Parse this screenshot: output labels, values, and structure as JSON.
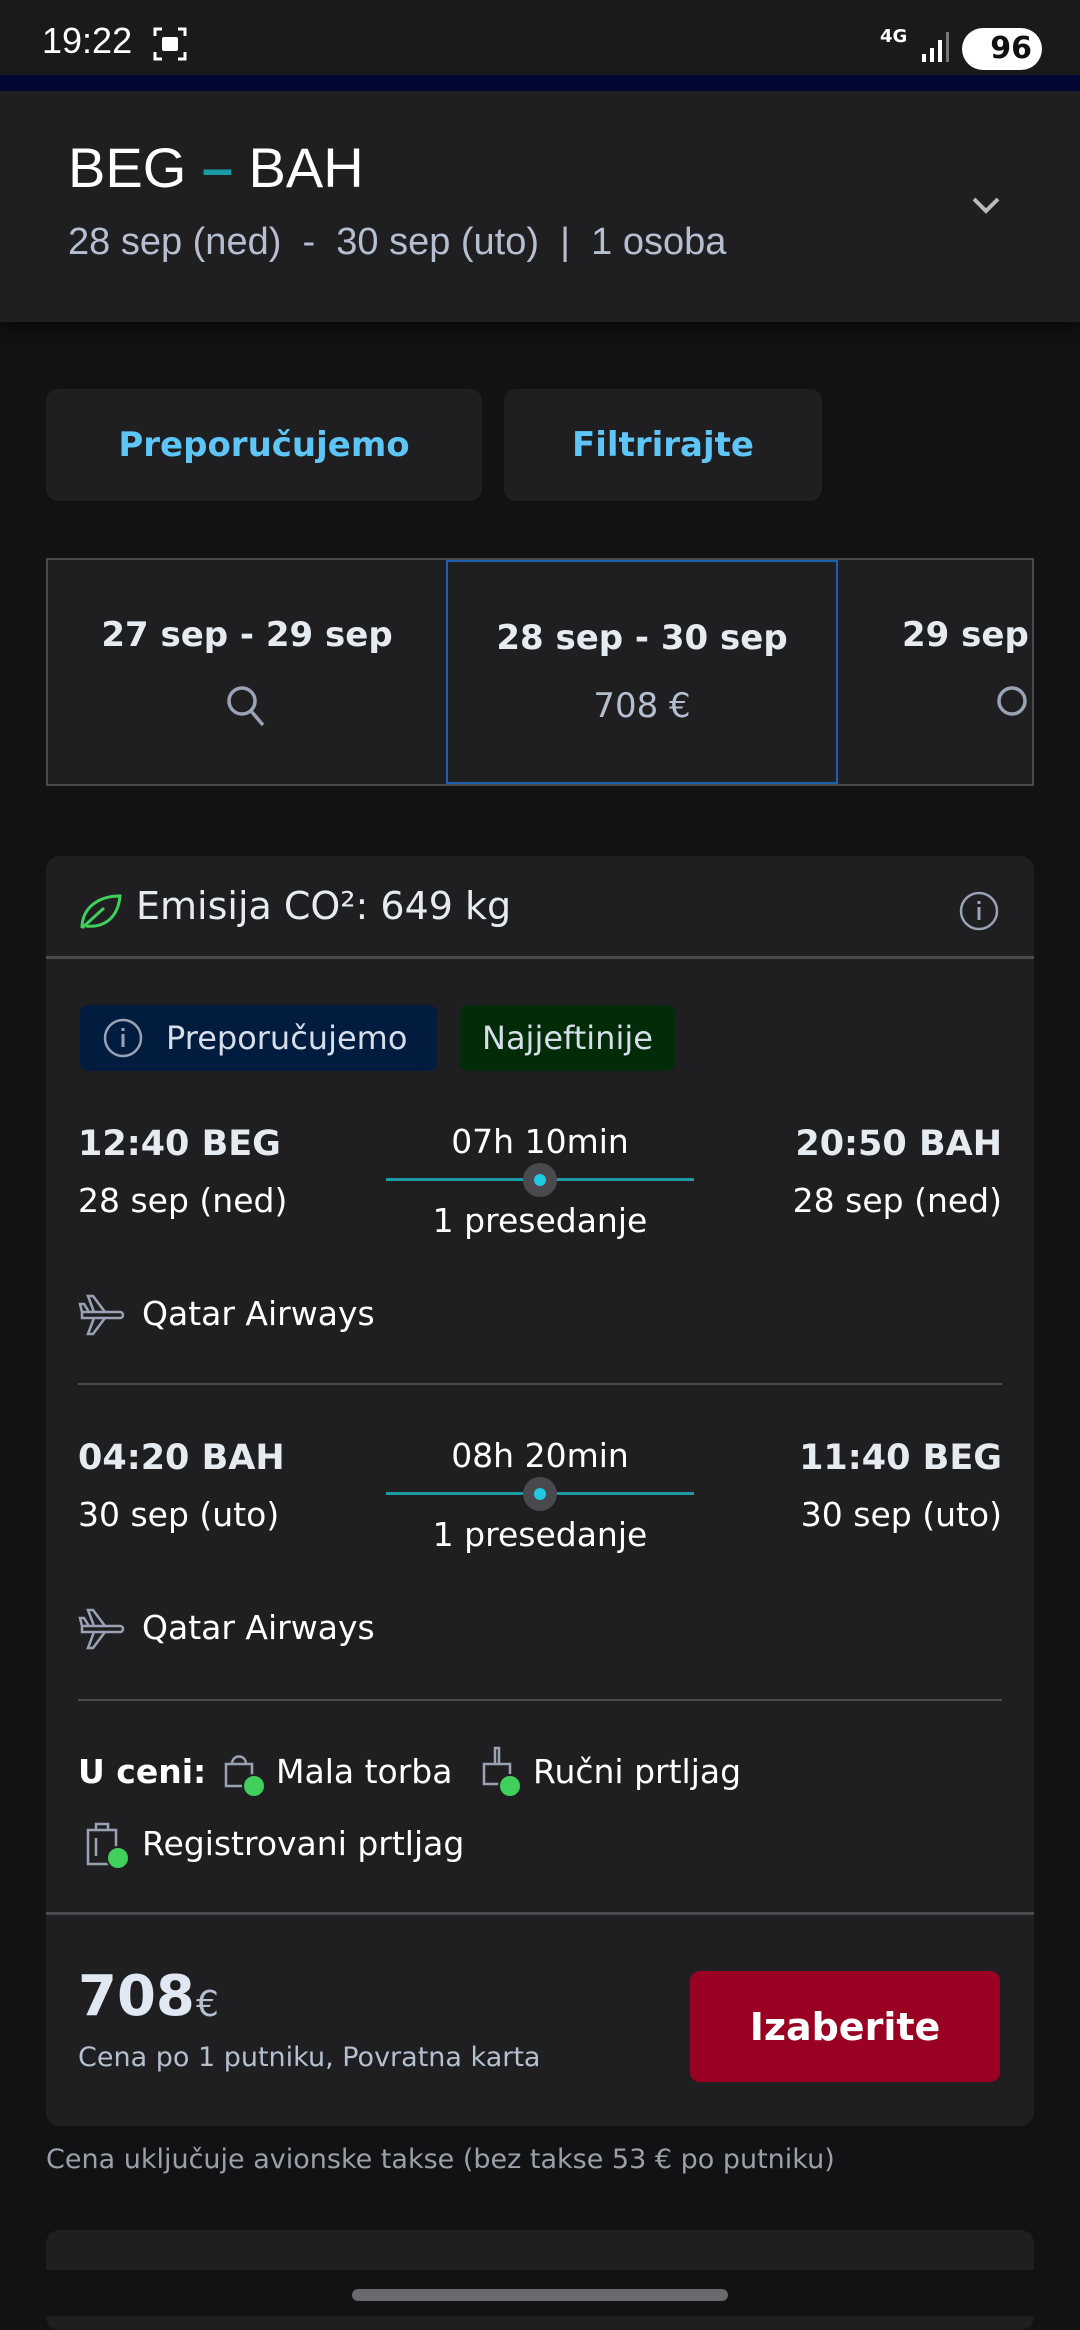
{
  "status": {
    "time": "19:22",
    "network": "4G",
    "battery": "96"
  },
  "header": {
    "from": "BEG",
    "to": "BAH",
    "dash": "–",
    "subtitle": "28 sep (ned)  -  30 sep (uto)  |  1 osoba"
  },
  "actions": {
    "recommend": "Preporučujemo",
    "filter": "Filtrirajte"
  },
  "date_tabs": [
    {
      "dates": "27 sep - 29 sep",
      "price": null,
      "icon": "search-icon"
    },
    {
      "dates": "28 sep - 30 sep",
      "price": "708 €",
      "selected": true
    },
    {
      "dates": "29 sep",
      "icon": "search-icon"
    }
  ],
  "card": {
    "co2": "Emisija CO²: 649 kg",
    "badges": {
      "recommended": "Preporučujemo",
      "cheapest": "Najjeftinije"
    },
    "flights": [
      {
        "dep": "12:40 BEG",
        "dep_date": "28 sep (ned)",
        "duration": "07h 10min",
        "stops": "1 presedanje",
        "arr": "20:50 BAH",
        "arr_date": "28 sep (ned)",
        "airline": "Qatar Airways"
      },
      {
        "dep": "04:20 BAH",
        "dep_date": "30 sep (uto)",
        "duration": "08h 20min",
        "stops": "1 presedanje",
        "arr": "11:40 BEG",
        "arr_date": "30 sep (uto)",
        "airline": "Qatar Airways"
      }
    ],
    "included_label": "U ceni:",
    "included": [
      "Mala torba",
      "Ručni prtljag",
      "Registrovani prtljag"
    ],
    "price": "708",
    "currency": "€",
    "price_note": "Cena po 1 putniku, Povratna karta",
    "select": "Izaberite"
  },
  "footnote": "Cena uključuje avionske takse (bez takse 53 € po putniku)",
  "colors": {
    "accent": "#5ec6f7",
    "select_button": "#9a0021",
    "route_line": "#1b9aa6",
    "check": "#3fcf5a"
  }
}
